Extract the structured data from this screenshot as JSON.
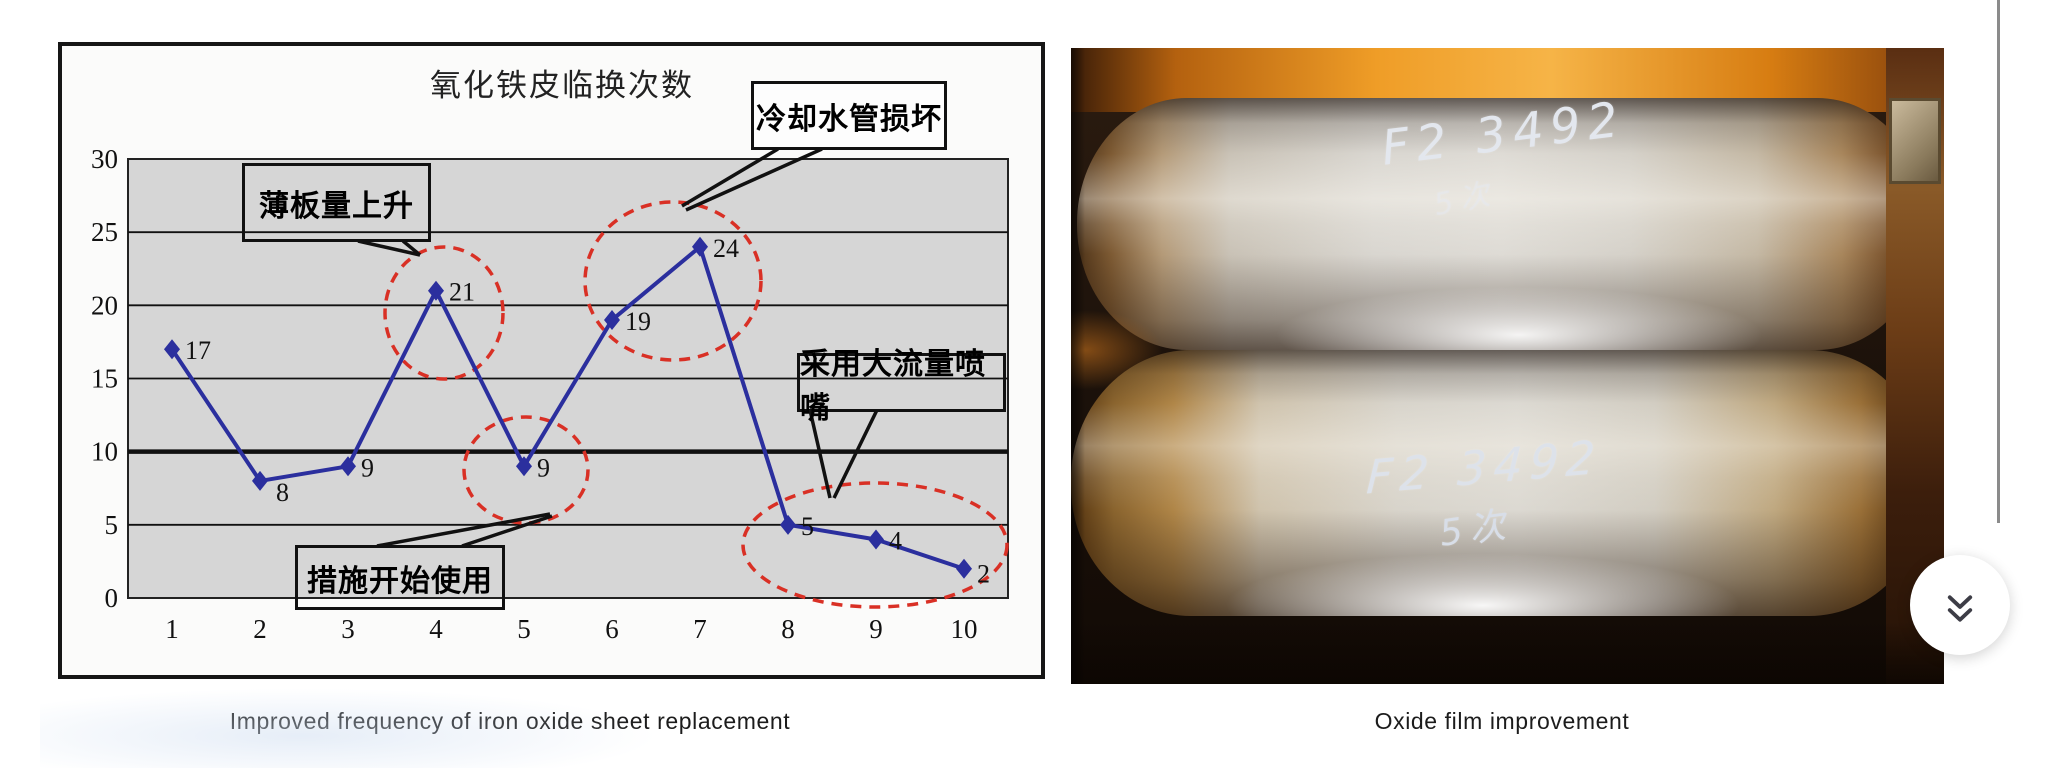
{
  "chart_data": {
    "type": "line",
    "title": "氧化铁皮临换次数",
    "categories": [
      1,
      2,
      3,
      4,
      5,
      6,
      7,
      8,
      9,
      10
    ],
    "values": [
      17,
      8,
      9,
      21,
      9,
      19,
      24,
      5,
      4,
      2
    ],
    "point_labels_shown": true,
    "ylim": [
      0,
      30
    ],
    "ytick_step": 5,
    "emphasized_gridline": 10,
    "grid": "on",
    "legend": "none",
    "xlabel": "",
    "ylabel": "",
    "line_color": "#2b2f9e",
    "plot_bg": "#d6d6d6",
    "annotation_color": "#d93025",
    "callouts": [
      {
        "text": "薄板量上升"
      },
      {
        "text": "冷却水管损坏"
      },
      {
        "text": "采用大流量喷嘴"
      },
      {
        "text": "措施开始使用"
      }
    ]
  },
  "left_figure": {
    "caption": "Improved frequency of iron oxide sheet replacement"
  },
  "right_figure": {
    "caption": "Oxide film improvement",
    "markings": {
      "top_roll_line1": "F2 3492",
      "top_roll_line2": "5次",
      "bottom_roll_line1": "F2 3492",
      "bottom_roll_line2": "5次"
    }
  },
  "icons": {
    "scroll_more": "chevron-double-down"
  }
}
